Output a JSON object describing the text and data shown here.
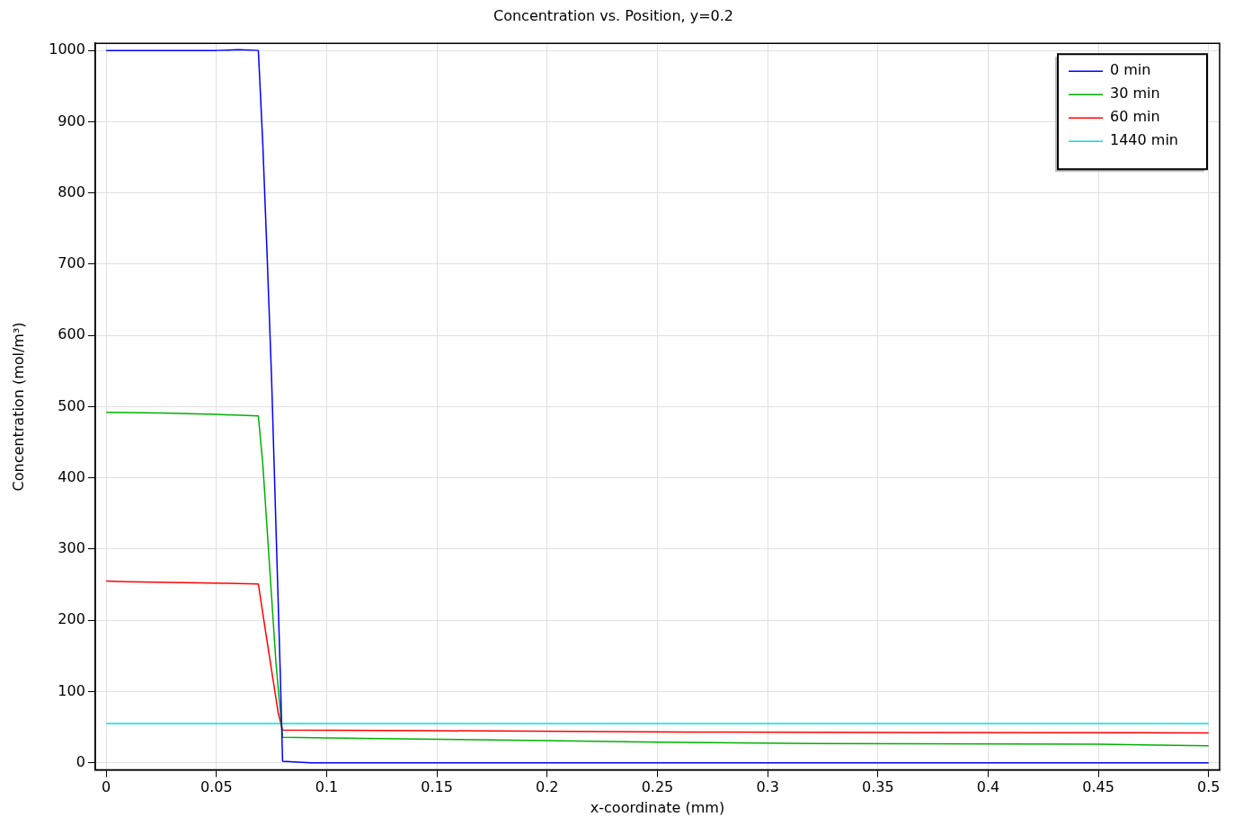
{
  "chart_data": {
    "type": "line",
    "title": "Concentration vs. Position, y=0.2",
    "xlabel": "x-coordinate (mm)",
    "ylabel": "Concentration (mol/m³)",
    "xlim": [
      -0.005,
      0.505
    ],
    "xticks": [
      0,
      0.05,
      0.1,
      0.15,
      0.2,
      0.25,
      0.3,
      0.35,
      0.4,
      0.45,
      0.5
    ],
    "ylim": [
      -10,
      1010
    ],
    "yticks": [
      0,
      100,
      200,
      300,
      400,
      500,
      600,
      700,
      800,
      900,
      1000
    ],
    "grid": true,
    "legend": "top right",
    "marker": "none",
    "line_style": "solid",
    "series": [
      {
        "name": "0 min",
        "color": "#0000ff",
        "x": [
          0,
          0.05,
          0.06,
          0.069,
          0.071,
          0.073,
          0.075,
          0.077,
          0.079,
          0.08,
          0.093,
          0.5
        ],
        "values": [
          1000,
          1000,
          1001,
          1000,
          870,
          710,
          540,
          330,
          120,
          2,
          0,
          0
        ]
      },
      {
        "name": "30 min",
        "color": "#00b000",
        "x": [
          0,
          0.025,
          0.05,
          0.069,
          0.071,
          0.074,
          0.077,
          0.08,
          0.1,
          0.15,
          0.2,
          0.25,
          0.32,
          0.45,
          0.5
        ],
        "values": [
          492,
          491,
          489,
          487,
          420,
          280,
          140,
          36,
          35,
          33,
          31,
          29,
          27,
          26,
          24
        ]
      },
      {
        "name": "60 min",
        "color": "#ff0000",
        "x": [
          0,
          0.01,
          0.055,
          0.069,
          0.072,
          0.075,
          0.078,
          0.08,
          0.15,
          0.28,
          0.5
        ],
        "values": [
          255,
          254,
          252,
          251,
          190,
          130,
          70,
          46,
          45,
          43,
          42
        ]
      },
      {
        "name": "1440 min",
        "color": "#00e0e0",
        "x": [
          0,
          0.5
        ],
        "values": [
          55,
          55
        ]
      }
    ]
  }
}
